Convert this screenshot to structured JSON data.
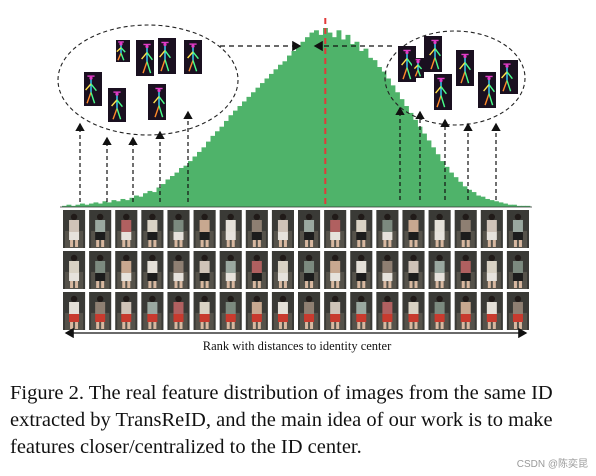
{
  "chart_data": {
    "type": "bar",
    "color": "#4fb36a",
    "center_line_color": "#e23a3a",
    "values": [
      1,
      2,
      1,
      2,
      3,
      2,
      3,
      4,
      3,
      5,
      4,
      6,
      5,
      7,
      6,
      8,
      10,
      9,
      12,
      14,
      13,
      17,
      20,
      24,
      27,
      30,
      34,
      36,
      40,
      44,
      48,
      52,
      57,
      62,
      66,
      70,
      75,
      80,
      84,
      88,
      92,
      96,
      100,
      104,
      108,
      112,
      116,
      120,
      124,
      127,
      132,
      136,
      140,
      144,
      148,
      152,
      154,
      150,
      156,
      152,
      148,
      154,
      146,
      150,
      142,
      144,
      136,
      138,
      130,
      128,
      122,
      118,
      112,
      106,
      100,
      94,
      88,
      82,
      76,
      70,
      64,
      58,
      52,
      46,
      40,
      35,
      30,
      26,
      22,
      18,
      15,
      13,
      10,
      9,
      7,
      6,
      5,
      4,
      3,
      2,
      2,
      1,
      1,
      1
    ],
    "center_index": 58
  },
  "figure": {
    "axis_label": "Rank with distances to identity center",
    "image_grid": {
      "rows": 3,
      "columns": 18
    },
    "cluster_left_count": 7,
    "cluster_right_count": 7
  },
  "caption": {
    "text": "Figure 2. The real feature distribution of images from the same ID extracted by TransReID, and the main idea of our work is to make features closer/centralized to the ID center."
  },
  "watermark": "CSDN @陈奕昆",
  "colors": {
    "thumb_bg": "#1a1020",
    "skeleton_colors": [
      "#e23cc8",
      "#3dd6ff",
      "#ffe14a",
      "#49ff8a",
      "#ff8a2b"
    ],
    "person_palette": [
      "#cfc3b8",
      "#9aa8a0",
      "#b06060",
      "#d9d2c4",
      "#7c8a7f",
      "#c8a890",
      "#e4e0d8",
      "#8e7f72"
    ]
  }
}
